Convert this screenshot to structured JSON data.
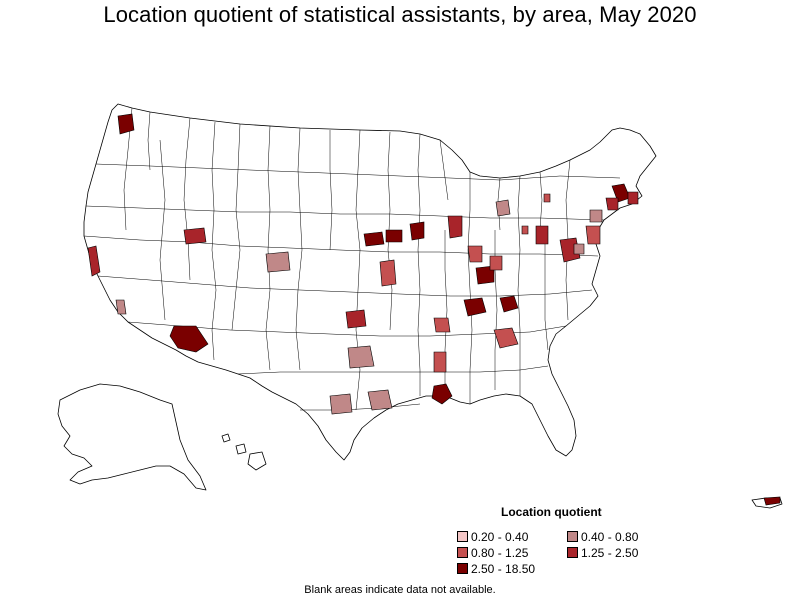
{
  "title": "Location quotient of statistical assistants, by area, May 2020",
  "legend": {
    "title": "Location quotient",
    "items": [
      {
        "label": "0.20 - 0.40",
        "color": "#f4c6c6"
      },
      {
        "label": "0.40 - 0.80",
        "color": "#c08888"
      },
      {
        "label": "0.80 - 1.25",
        "color": "#c45050"
      },
      {
        "label": "1.25 - 2.50",
        "color": "#a8242a"
      },
      {
        "label": "2.50 - 18.50",
        "color": "#7a0000"
      }
    ]
  },
  "note": "Blank areas indicate data not available.",
  "map": {
    "outline_color": "#000000",
    "fill_blank": "#ffffff"
  }
}
